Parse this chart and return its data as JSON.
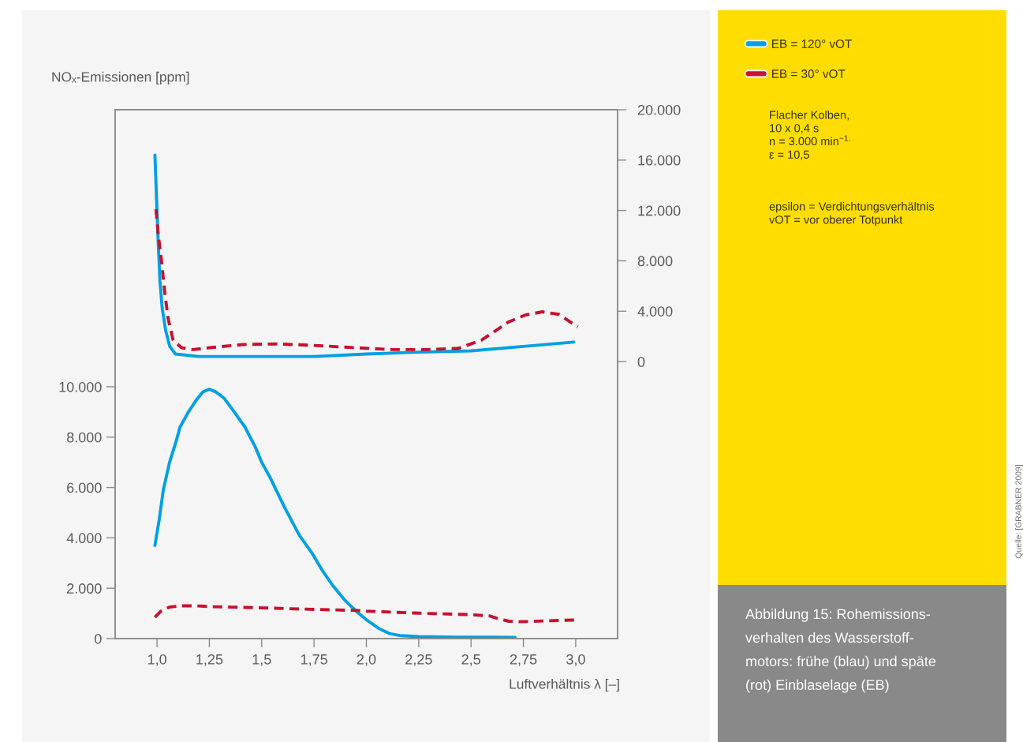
{
  "chart_data": {
    "type": "line",
    "xlabel": "Luftverhältnis λ [–]",
    "ylabel": "NOₓ-Emissionen [ppm]",
    "xlim": [
      0.8,
      3.2
    ],
    "xticks": [
      {
        "value": 1.0,
        "label": "1,0"
      },
      {
        "value": 1.25,
        "label": "1,25"
      },
      {
        "value": 1.5,
        "label": "1,5"
      },
      {
        "value": 1.75,
        "label": "1,75"
      },
      {
        "value": 2.0,
        "label": "2,0"
      },
      {
        "value": 2.25,
        "label": "2,25"
      },
      {
        "value": 2.5,
        "label": "2,5"
      },
      {
        "value": 2.75,
        "label": "2,75"
      },
      {
        "value": 3.0,
        "label": "3,0"
      }
    ],
    "ylim": [
      0,
      21000
    ],
    "yticks": [
      0,
      {
        "value": 2000,
        "label": "2.000"
      },
      {
        "value": 4000,
        "label": "4.000"
      },
      {
        "value": 6000,
        "label": "6.000"
      },
      {
        "value": 8000,
        "label": "8.000"
      },
      {
        "value": 10000,
        "label": "10.000"
      }
    ],
    "y2lim": [
      -22000,
      20000
    ],
    "y2ticks": [
      0,
      {
        "value": 4000,
        "label": "4.000"
      },
      {
        "value": 8000,
        "label": "8.000"
      },
      {
        "value": 12000,
        "label": "12.000"
      },
      {
        "value": 16000,
        "label": "16.000"
      },
      {
        "value": 20000,
        "label": "20.000"
      }
    ],
    "series": [
      {
        "name": "EB = 120° vOT",
        "color": "#00a0e2",
        "line_style": "solid",
        "x": [
          0.99,
          1.01,
          1.03,
          1.06,
          1.09,
          1.11,
          1.15,
          1.19,
          1.22,
          1.25,
          1.28,
          1.32,
          1.36,
          1.42,
          1.47,
          1.5,
          1.54,
          1.61,
          1.68,
          1.74,
          1.79,
          1.84,
          1.9,
          1.95,
          2.0,
          2.06,
          2.11,
          2.16,
          2.2,
          2.25,
          2.43,
          2.6,
          2.71
        ],
        "values": [
          3700,
          4700,
          5900,
          7000,
          7800,
          8400,
          9000,
          9500,
          9800,
          9900,
          9800,
          9550,
          9100,
          8400,
          7600,
          7000,
          6400,
          5200,
          4100,
          3400,
          2700,
          2100,
          1500,
          1100,
          750,
          400,
          200,
          120,
          100,
          80,
          60,
          60,
          50
        ]
      },
      {
        "name": "EB = 30° vOT",
        "color": "#c4122f",
        "line_style": "dashed",
        "x": [
          0.99,
          1.02,
          1.06,
          1.11,
          1.19,
          1.25,
          1.36,
          1.5,
          1.75,
          1.95,
          2.0,
          2.25,
          2.5,
          2.59,
          2.63,
          2.68,
          2.73,
          2.78,
          2.87,
          3.0
        ],
        "values": [
          850,
          1100,
          1250,
          1300,
          1300,
          1270,
          1250,
          1220,
          1160,
          1120,
          1090,
          1010,
          950,
          900,
          790,
          690,
          670,
          680,
          710,
          740
        ]
      },
      {
        "color": "#00a0e2",
        "line_style": "solid",
        "axis": "y2",
        "x": [
          0.99,
          0.998,
          1.006,
          1.014,
          1.025,
          1.041,
          1.061,
          1.088,
          1.2,
          1.5,
          1.75,
          2.0,
          2.25,
          2.5,
          2.75,
          2.99
        ],
        "values": [
          16400,
          12800,
          9300,
          6400,
          4200,
          2500,
          1200,
          600,
          400,
          400,
          400,
          600,
          750,
          850,
          1200,
          1550
        ]
      },
      {
        "color": "#c4122f",
        "line_style": "dashed",
        "axis": "y2",
        "x": [
          0.995,
          1.006,
          1.022,
          1.037,
          1.053,
          1.077,
          1.117,
          1.172,
          1.25,
          1.41,
          1.57,
          1.73,
          1.89,
          2.12,
          2.28,
          2.44,
          2.55,
          2.68,
          2.76,
          2.84,
          2.92,
          3.01
        ],
        "values": [
          12100,
          10100,
          7900,
          5500,
          3400,
          1700,
          1100,
          950,
          1100,
          1350,
          1400,
          1300,
          1150,
          950,
          950,
          1050,
          1700,
          3150,
          3700,
          3950,
          3750,
          2750
        ]
      }
    ],
    "legend": "top right",
    "annotations": [
      "Flacher Kolben,\n10 x 0,4 s\nn = 3.000 min$^{−1.}$\nε = 10,5",
      "epsilon = Verdichtungsverhältnis\nvOT = vor oberer Totpunkt",
      "Abbildung 15: Rohemissions-\nverhalten des Wasserstoff-\nmotors: frühe (blau) und späte\n(rot) Einblaselage (EB)",
      "Quelle: [GRABNER 2009]"
    ]
  }
}
